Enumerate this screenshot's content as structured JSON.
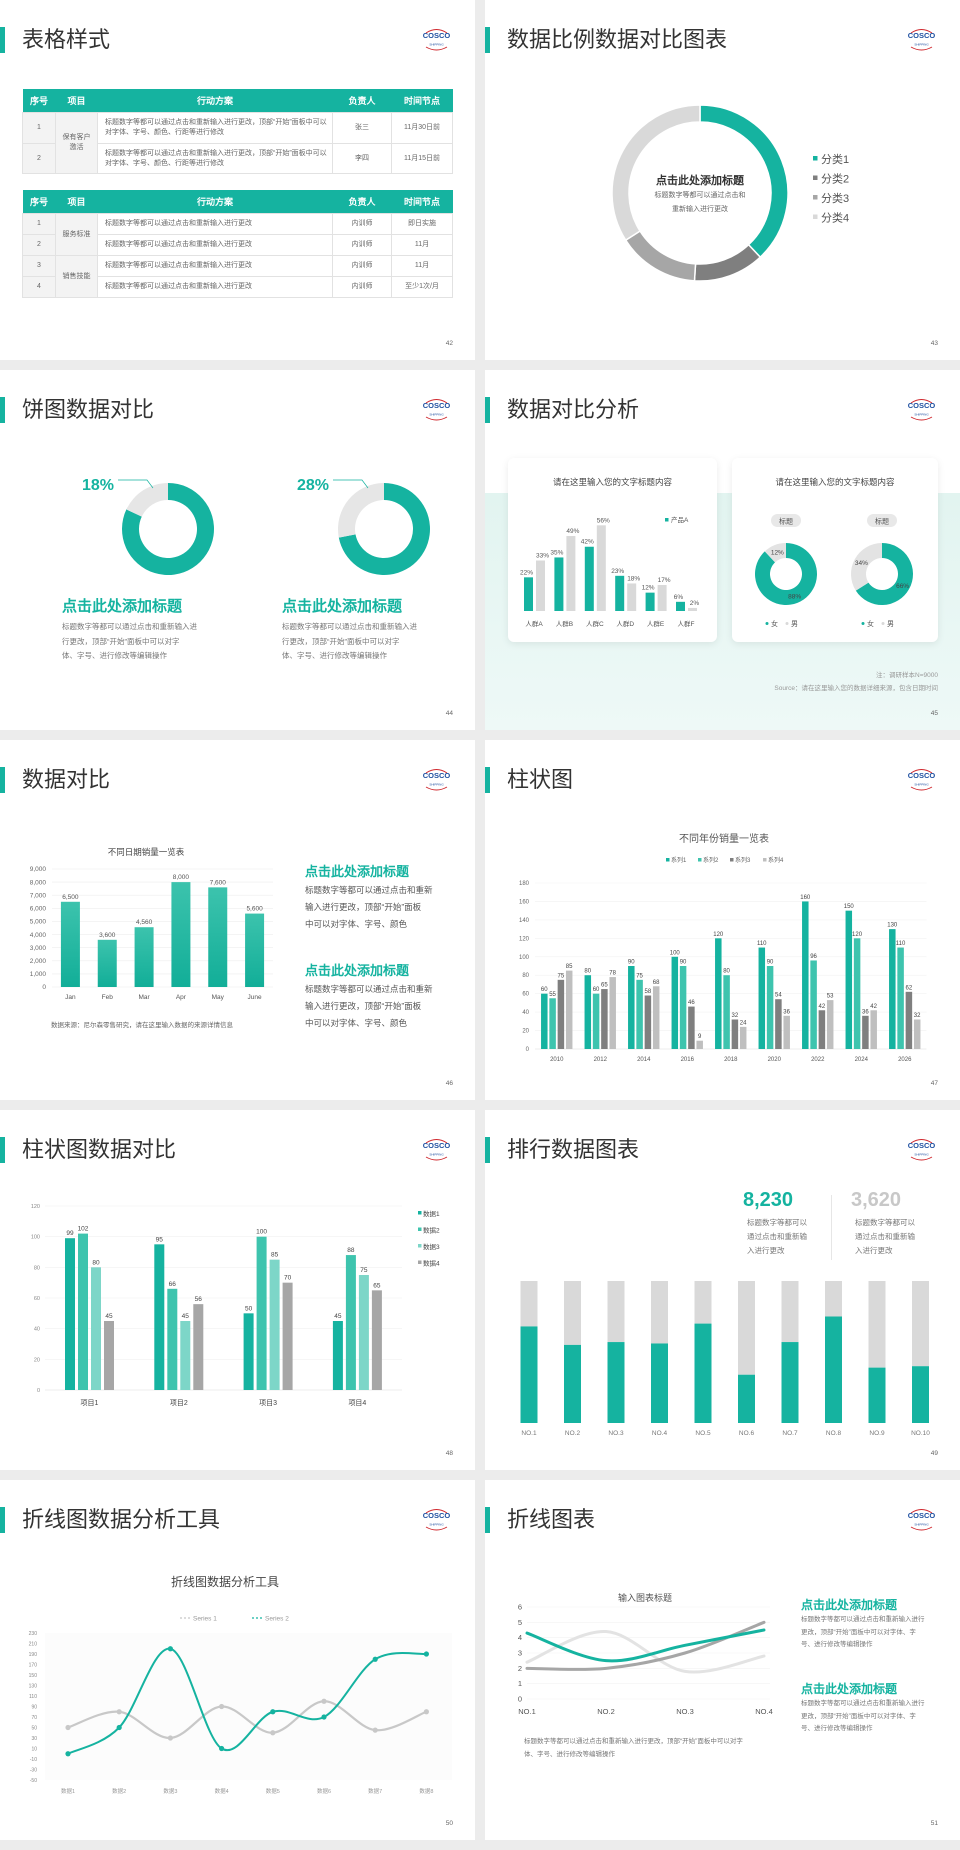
{
  "logo": {
    "name": "COSCO",
    "sub": "SHIPPING"
  },
  "colors": {
    "teal": "#15b3a0",
    "teal2": "#3ec4ae",
    "teal3": "#7dd6c8",
    "dark_gray": "#7f7f7f",
    "mid_gray": "#a6a6a6",
    "light_gray": "#d9d9d9"
  },
  "slides": [
    {
      "title": "表格样式",
      "page": "42",
      "table1": {
        "headers": [
          "序号",
          "项目",
          "行动方案",
          "负责人",
          "时间节点"
        ],
        "group": "保有客户激活",
        "rows": [
          {
            "no": "1",
            "plan": "标题数字等都可以通过点击和重新输入进行更改，顶部“开始”面板中可以对字体、字号、颜色、行距等进行修改",
            "owner": "张三",
            "time": "11月30日前"
          },
          {
            "no": "2",
            "plan": "标题数字等都可以通过点击和重新输入进行更改，顶部“开始”面板中可以对字体、字号、颜色、行距等进行修改",
            "owner": "李四",
            "time": "11月15日前"
          }
        ]
      },
      "table2": {
        "headers": [
          "序号",
          "项目",
          "行动方案",
          "负责人",
          "时间节点"
        ],
        "groups": [
          "服务标准",
          "销售技能"
        ],
        "rows": [
          {
            "no": "1",
            "plan": "标题数字等都可以通过点击和重新输入进行更改",
            "owner": "内训师",
            "time": "即日实施"
          },
          {
            "no": "2",
            "plan": "标题数字等都可以通过点击和重新输入进行更改",
            "owner": "内训师",
            "time": "11月"
          },
          {
            "no": "3",
            "plan": "标题数字等都可以通过点击和重新输入进行更改",
            "owner": "内训师",
            "time": "11月"
          },
          {
            "no": "4",
            "plan": "标题数字等都可以通过点击和重新输入进行更改",
            "owner": "内训师",
            "time": "至少1次/月"
          }
        ]
      }
    },
    {
      "title": "数据比例数据对比图表",
      "page": "43",
      "center_title": "点击此处添加标题",
      "center_text": [
        "标题数字等都可以通过点击和",
        "重新输入进行更改"
      ]
    },
    {
      "title": "饼图数据对比",
      "page": "44",
      "blocks": [
        {
          "heading": "点击此处添加标题",
          "text": [
            "标题数字等都可以通过点击和重新输入进",
            "行更改，顶部“开始”面板中可以对字",
            "体、字号、进行修改等编辑操作"
          ]
        },
        {
          "heading": "点击此处添加标题",
          "text": [
            "标题数字等都可以通过点击和重新输入进",
            "行更改，顶部“开始”面板中可以对字",
            "体、字号、进行修改等编辑操作"
          ]
        }
      ]
    },
    {
      "title": "数据对比分析",
      "page": "45",
      "card_titles": [
        "请在这里输入您的文字标题内容",
        "请在这里输入您的文字标题内容"
      ],
      "note": "注：调研样本N=9000",
      "source": "Source：请在这里输入您的数据详细来源，包含日期时间"
    },
    {
      "title": "数据对比",
      "page": "46",
      "source": "数据来源：尼尔森零售研究，请在这里输入数据的来源详情信息",
      "blocks": [
        {
          "heading": "点击此处添加标题",
          "text": [
            "标题数字等都可以通过点击和重新",
            "输入进行更改，顶部“开始”面板",
            "中可以对字体、字号、颜色"
          ]
        },
        {
          "heading": "点击此处添加标题",
          "text": [
            "标题数字等都可以通过点击和重新",
            "输入进行更改，顶部“开始”面板",
            "中可以对字体、字号、颜色"
          ]
        }
      ]
    },
    {
      "title": "柱状图",
      "page": "47"
    },
    {
      "title": "柱状图数据对比",
      "page": "48"
    },
    {
      "title": "排行数据图表",
      "page": "49",
      "stats": [
        {
          "value": "8,230",
          "text": [
            "标题数字等都可以",
            "通过点击和重新输",
            "入进行更改"
          ]
        },
        {
          "value": "3,620",
          "text": [
            "标题数字等都可以",
            "通过点击和重新输",
            "入进行更改"
          ]
        }
      ]
    },
    {
      "title": "折线图数据分析工具",
      "page": "50"
    },
    {
      "title": "折线图表",
      "page": "51",
      "caption": [
        "标题数字等都可以通过点击和重新输入进行更改，顶部“开始”面板中可以对字",
        "体、字号、进行修改等编辑操作"
      ],
      "blocks": [
        {
          "heading": "点击此处添加标题",
          "text": [
            "标题数字等都可以通过点击和重新输入进行",
            "更改，顶部“开始”面板中可以对字体、字",
            "号、进行修改等编辑操作"
          ]
        },
        {
          "heading": "点击此处添加标题",
          "text": [
            "标题数字等都可以通过点击和重新输入进行",
            "更改，顶部“开始”面板中可以对字体、字",
            "号、进行修改等编辑操作"
          ]
        }
      ]
    }
  ],
  "chart_data": [
    {
      "type": "pie",
      "donut": true,
      "categories": [
        "分类1",
        "分类2",
        "分类3",
        "分类4"
      ],
      "values": [
        38,
        13,
        15,
        34
      ],
      "colors": [
        "#15b3a0",
        "#7f7f7f",
        "#a6a6a6",
        "#d9d9d9"
      ],
      "legend": "right"
    },
    {
      "type": "pie",
      "donut": true,
      "pies": [
        {
          "value": 18,
          "label": "18%"
        },
        {
          "value": 28,
          "label": "28%"
        }
      ]
    },
    {
      "type": "bar",
      "title": "请在这里输入您的文字标题内容",
      "categories": [
        "人群A",
        "人群B",
        "人群C",
        "人群D",
        "人群E",
        "人群F"
      ],
      "series": [
        {
          "name": "产品A",
          "values": [
            22,
            35,
            42,
            23,
            12,
            6
          ]
        },
        {
          "values": [
            33,
            49,
            56,
            18,
            17,
            2
          ]
        }
      ],
      "unit": "%",
      "legend": "top-right"
    },
    {
      "type": "pie",
      "donut": true,
      "title": "请在这里输入您的文字标题内容",
      "categories": [
        "女",
        "男"
      ],
      "pies": [
        {
          "label": "标题",
          "values": [
            88,
            12
          ]
        },
        {
          "label": "标题",
          "values": [
            66,
            34
          ]
        }
      ],
      "legend": "bottom"
    },
    {
      "type": "bar",
      "title": "不同日期销量一览表",
      "categories": [
        "Jan",
        "Feb",
        "Mar",
        "Apr",
        "May",
        "June"
      ],
      "values": [
        6500,
        3600,
        4560,
        8000,
        7600,
        5600
      ],
      "ylim": [
        0,
        9000
      ],
      "ytick_step": 1000,
      "grid": true
    },
    {
      "type": "bar",
      "title": "不同年份销量一览表",
      "categories": [
        "2010",
        "2012",
        "2014",
        "2016",
        "2018",
        "2020",
        "2022",
        "2024",
        "2026"
      ],
      "series": [
        {
          "name": "系列1",
          "values": [
            60,
            80,
            90,
            100,
            120,
            110,
            160,
            150,
            130
          ]
        },
        {
          "name": "系列2",
          "values": [
            55,
            60,
            75,
            90,
            80,
            90,
            96,
            120,
            110
          ]
        },
        {
          "name": "系列3",
          "values": [
            75,
            65,
            58,
            46,
            32,
            54,
            42,
            36,
            62
          ]
        },
        {
          "name": "系列4",
          "values": [
            85,
            78,
            68,
            9,
            24,
            36,
            53,
            42,
            32
          ]
        }
      ],
      "ylim": [
        0,
        180
      ],
      "ytick_step": 20,
      "legend": "top",
      "grid": true
    },
    {
      "type": "bar",
      "categories": [
        "项目1",
        "项目2",
        "项目3",
        "项目4"
      ],
      "series": [
        {
          "name": "数据1",
          "values": [
            99,
            95,
            50,
            45
          ]
        },
        {
          "name": "数据2",
          "values": [
            102,
            66,
            100,
            88
          ]
        },
        {
          "name": "数据3",
          "values": [
            80,
            45,
            85,
            75
          ]
        },
        {
          "name": "数据4",
          "values": [
            45,
            56,
            70,
            65
          ]
        }
      ],
      "ylim": [
        0,
        120
      ],
      "ytick_step": 20,
      "legend": "right",
      "grid": true
    },
    {
      "type": "bar",
      "stacked": "percent",
      "categories": [
        "NO.1",
        "NO.2",
        "NO.3",
        "NO.4",
        "NO.5",
        "NO.6",
        "NO.7",
        "NO.8",
        "NO.9",
        "NO.10"
      ],
      "values": [
        0.68,
        0.55,
        0.57,
        0.56,
        0.7,
        0.34,
        0.57,
        0.75,
        0.39,
        0.4
      ]
    },
    {
      "type": "line",
      "title": "折线图数据分析工具",
      "categories": [
        "数据1",
        "数据2",
        "数据3",
        "数据4",
        "数据5",
        "数据6",
        "数据7",
        "数据8"
      ],
      "series": [
        {
          "name": "Series 1",
          "values": [
            50,
            80,
            30,
            90,
            40,
            100,
            45,
            80
          ]
        },
        {
          "name": "Series 2",
          "values": [
            0,
            50,
            200,
            10,
            80,
            70,
            180,
            190
          ]
        }
      ],
      "ylim": [
        -50,
        230
      ],
      "ytick_step": 20,
      "legend": "top"
    },
    {
      "type": "line",
      "title": "输入图表标题",
      "categories": [
        "NO.1",
        "NO.2",
        "NO.3",
        "NO.4"
      ],
      "series": [
        {
          "values": [
            4.3,
            2.5,
            3.5,
            4.5
          ]
        },
        {
          "values": [
            2.4,
            4.4,
            1.8,
            2.8
          ]
        },
        {
          "values": [
            2,
            2,
            3,
            5
          ]
        }
      ],
      "ylim": [
        0,
        6
      ],
      "ytick_step": 1,
      "grid": true
    }
  ]
}
